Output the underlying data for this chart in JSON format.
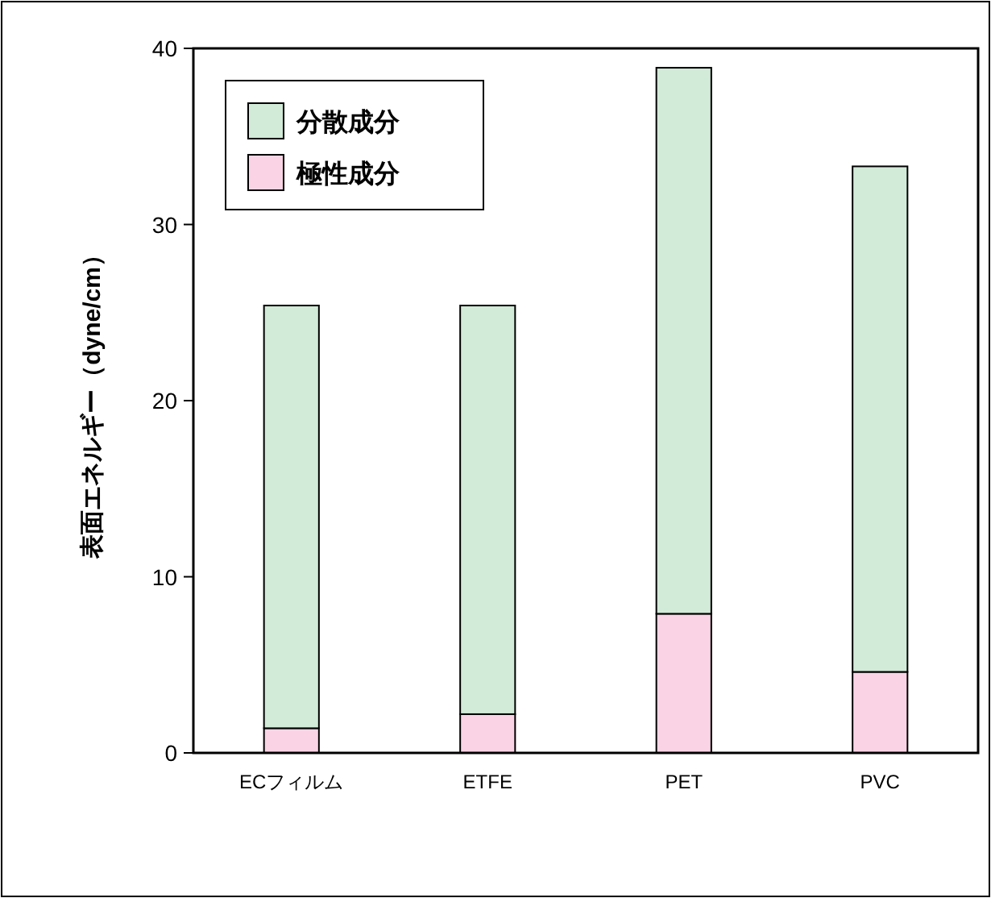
{
  "chart_data": {
    "type": "bar",
    "stacked": true,
    "ylabel": "表面エネルギー（dyne/cm）",
    "categories": [
      "ECフィルム",
      "ETFE",
      "PET",
      "PVC"
    ],
    "series": [
      {
        "name": "極性成分",
        "color": "#fad4e4",
        "values": [
          1.4,
          2.2,
          7.9,
          4.6
        ]
      },
      {
        "name": "分散成分",
        "color": "#d2ead8",
        "values": [
          24.0,
          23.2,
          31.0,
          28.7
        ]
      }
    ],
    "ylim": [
      0,
      40
    ],
    "yticks": [
      0,
      10,
      20,
      30,
      40
    ],
    "grid": false,
    "legend": "top left"
  }
}
